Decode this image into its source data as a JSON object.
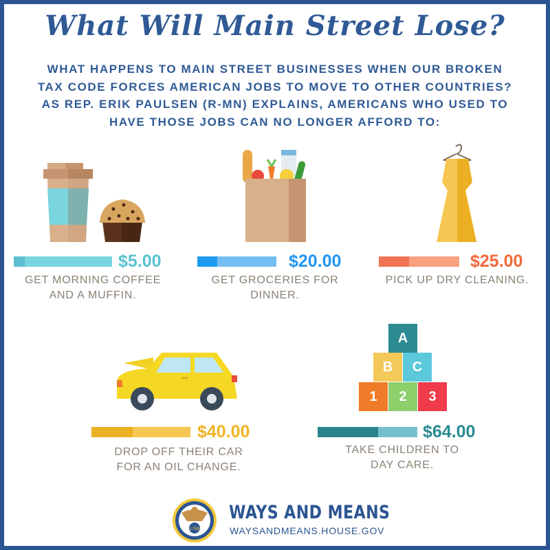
{
  "title": "What Will Main Street Lose?",
  "subtitle": [
    "WHAT HAPPENS TO MAIN STREET BUSINESSES WHEN OUR BROKEN",
    "TAX CODE FORCES AMERICAN JOBS TO MOVE TO OTHER COUNTRIES?",
    "AS REP. ERIK PAULSEN (R-MN) EXPLAINS, AMERICANS WHO USED TO",
    "HAVE THOSE JOBS CAN NO LONGER AFFORD TO:"
  ],
  "items": [
    {
      "price": "$5.00",
      "label": [
        "GET MORNING COFFEE",
        "AND A MUFFIN."
      ],
      "icon": "coffee-muffin",
      "color": "#5bc2d0",
      "dark": "#5bbfcf",
      "light": "#78d6de"
    },
    {
      "price": "$20.00",
      "label": [
        "GET GROCERIES FOR",
        "DINNER."
      ],
      "icon": "grocery-bag",
      "color": "#2196f3",
      "dark": "#1e9bef",
      "light": "#74bdf2"
    },
    {
      "price": "$25.00",
      "label": [
        "PICK UP DRY CLEANING."
      ],
      "icon": "dress",
      "color": "#f26a3a",
      "dark": "#f07453",
      "light": "#f9a07e"
    },
    {
      "price": "$40.00",
      "label": [
        "DROP OFF THEIR CAR",
        "FOR AN OIL CHANGE."
      ],
      "icon": "car",
      "color": "#f0b323",
      "dark": "#ebb023",
      "light": "#f5c652"
    },
    {
      "price": "$64.00",
      "label": [
        "TAKE CHILDREN TO",
        "DAY CARE."
      ],
      "icon": "blocks",
      "color": "#2a8a92",
      "dark": "#2a848b",
      "light": "#74c0cb"
    }
  ],
  "blocks": [
    "A",
    "B",
    "C",
    "1",
    "2",
    "3"
  ],
  "footer": {
    "org": "WAYS AND MEANS",
    "url": "WAYSANDMEANS.HOUSE.GOV",
    "seal_text": "1789"
  }
}
